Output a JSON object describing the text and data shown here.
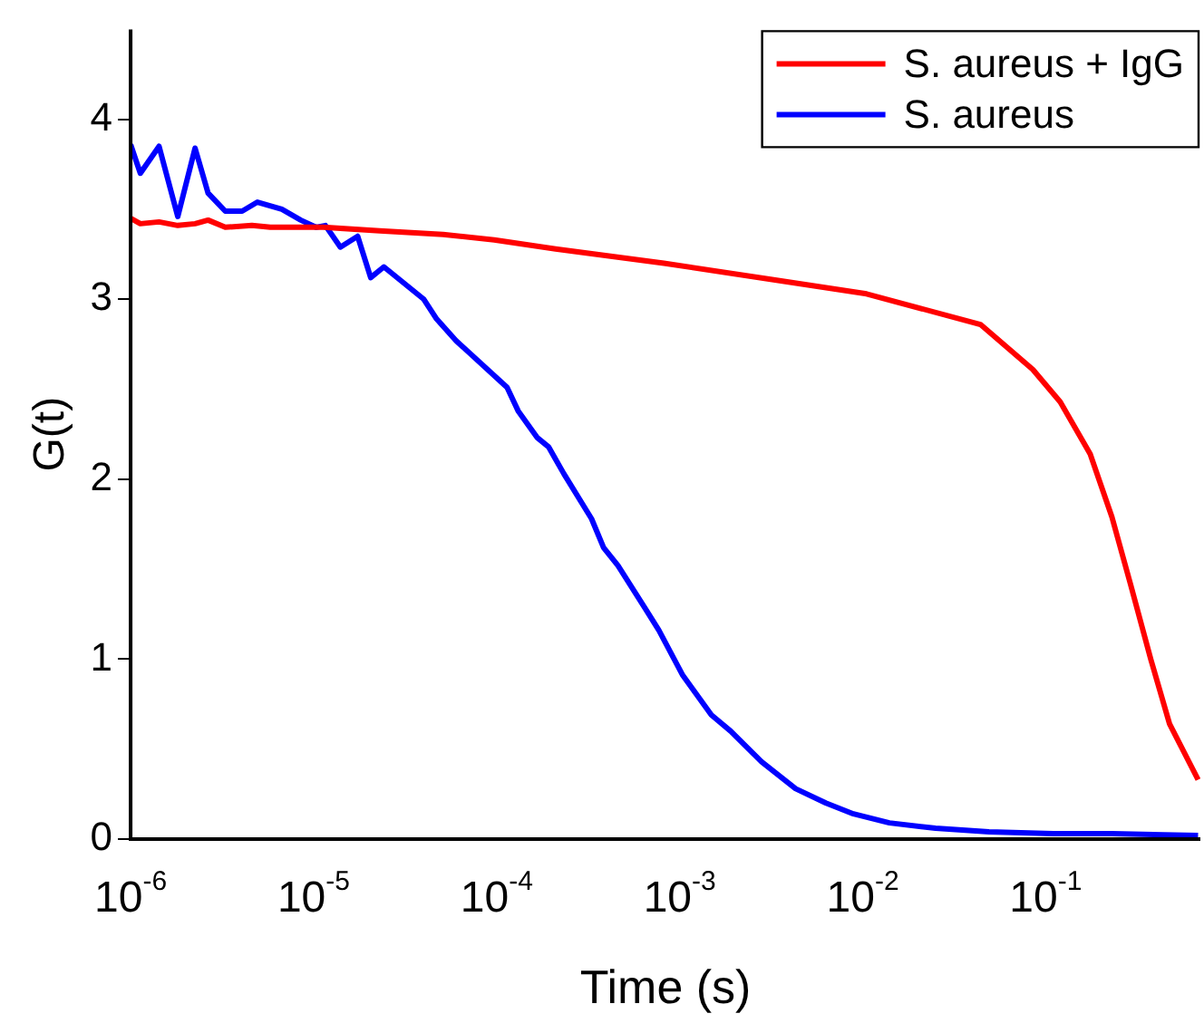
{
  "chart_data": {
    "type": "line",
    "xlabel": "Time (s)",
    "ylabel": "G(t)",
    "log": "x",
    "xlim": [
      1e-06,
      0.7
    ],
    "ylim": [
      0,
      4.5
    ],
    "xticks": [
      {
        "value": 1e-06,
        "label": "10$^{-6}$"
      },
      {
        "value": 1e-05,
        "label": "10$^{-5}$"
      },
      {
        "value": 0.0001,
        "label": "10$^{-4}$"
      },
      {
        "value": 0.001,
        "label": "10$^{-3}$"
      },
      {
        "value": 0.01,
        "label": "10$^{-2}$"
      },
      {
        "value": 0.1,
        "label": "10$^{-1}$"
      }
    ],
    "yticks": [
      0,
      1,
      2,
      3,
      4
    ],
    "grid": false,
    "legend": "top right",
    "marker": "none",
    "line_style": "solid",
    "series": [
      {
        "name": "S. aureus + IgG",
        "color": "#ff0000",
        "x": [
          1e-06,
          1.13e-06,
          1.43e-06,
          1.81e-06,
          2.25e-06,
          2.65e-06,
          3.29e-06,
          4.6e-06,
          5.8e-06,
          1.13e-05,
          2.3e-05,
          5.1e-05,
          9.7e-05,
          0.00021,
          0.00082,
          0.0032,
          0.0105,
          0.044,
          0.085,
          0.12,
          0.175,
          0.23,
          0.29,
          0.375,
          0.475,
          0.68
        ],
        "values": [
          3.45,
          3.42,
          3.43,
          3.41,
          3.42,
          3.44,
          3.4,
          3.41,
          3.4,
          3.4,
          3.38,
          3.36,
          3.33,
          3.28,
          3.2,
          3.11,
          3.03,
          2.86,
          2.61,
          2.43,
          2.14,
          1.79,
          1.42,
          1.0,
          0.64,
          0.33
        ]
      },
      {
        "name": "S. aureus",
        "color": "#0000ff",
        "x": [
          1e-06,
          1.13e-06,
          1.43e-06,
          1.81e-06,
          2.25e-06,
          2.65e-06,
          3.29e-06,
          4.07e-06,
          4.93e-06,
          6.7e-06,
          8.5e-06,
          1.03e-05,
          1.16e-05,
          1.4e-05,
          1.74e-05,
          2.05e-05,
          2.42e-05,
          4e-05,
          4.7e-05,
          6e-05,
          0.000114,
          0.000131,
          0.000167,
          0.000192,
          0.000233,
          0.00033,
          0.000384,
          0.00046,
          0.00065,
          0.00077,
          0.00104,
          0.00149,
          0.0019,
          0.0028,
          0.0043,
          0.0063,
          0.0089,
          0.014,
          0.025,
          0.049,
          0.11,
          0.23,
          0.68
        ],
        "values": [
          3.86,
          3.7,
          3.85,
          3.46,
          3.84,
          3.59,
          3.49,
          3.49,
          3.54,
          3.5,
          3.44,
          3.4,
          3.41,
          3.29,
          3.35,
          3.12,
          3.18,
          3.0,
          2.89,
          2.77,
          2.51,
          2.38,
          2.23,
          2.18,
          2.03,
          1.78,
          1.62,
          1.52,
          1.28,
          1.16,
          0.91,
          0.69,
          0.6,
          0.43,
          0.28,
          0.2,
          0.14,
          0.09,
          0.06,
          0.04,
          0.03,
          0.03,
          0.02
        ]
      }
    ]
  }
}
